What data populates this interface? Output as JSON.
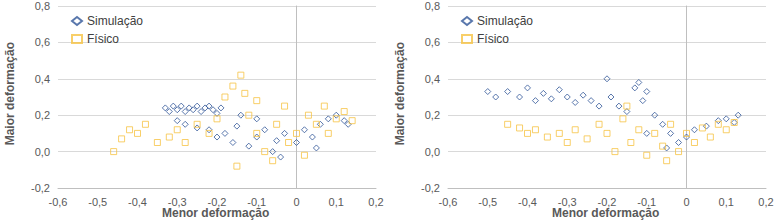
{
  "chart_data": [
    {
      "type": "scatter",
      "x_label": "Menor deformação",
      "y_label": "Maior deformação",
      "xlim": [
        -0.6,
        0.2
      ],
      "xticks": [
        {
          "value": -0.6,
          "label": "-0,6"
        },
        {
          "value": -0.5,
          "label": "-0,5"
        },
        {
          "value": -0.4,
          "label": "-0,4"
        },
        {
          "value": -0.3,
          "label": "-0,3"
        },
        {
          "value": -0.2,
          "label": "-0,2"
        },
        {
          "value": -0.1,
          "label": "-0,1"
        },
        0,
        {
          "value": 0.1,
          "label": "0,1"
        },
        {
          "value": 0.2,
          "label": "0,2"
        }
      ],
      "ylim": [
        -0.2,
        0.8
      ],
      "yticks": [
        {
          "value": -0.2,
          "label": "-0,2"
        },
        {
          "value": 0,
          "label": "0,0"
        },
        {
          "value": 0.2,
          "label": "0,2"
        },
        {
          "value": 0.4,
          "label": "0,4"
        },
        {
          "value": 0.6,
          "label": "0,6"
        },
        {
          "value": 0.8,
          "label": "0,8"
        }
      ],
      "grid": true,
      "legend": "top-left",
      "series": [
        {
          "name": "Simulação",
          "color": "#2f5597",
          "marker": "diamond",
          "x": [
            -0.33,
            -0.32,
            -0.31,
            -0.3,
            -0.29,
            -0.28,
            -0.27,
            -0.26,
            -0.25,
            -0.24,
            -0.23,
            -0.22,
            -0.21,
            -0.2,
            -0.19,
            -0.3,
            -0.28,
            -0.25,
            -0.22,
            -0.2,
            -0.18,
            -0.16,
            -0.15,
            -0.12,
            -0.1,
            -0.08,
            -0.06,
            -0.05,
            -0.03,
            0,
            0.02,
            0.04,
            0.06,
            0.08,
            0.1,
            0.12,
            0.13,
            -0.14,
            -0.1,
            -0.04,
            0.05
          ],
          "values": [
            0.24,
            0.22,
            0.25,
            0.23,
            0.25,
            0.22,
            0.24,
            0.23,
            0.25,
            0.22,
            0.24,
            0.25,
            0.23,
            0.21,
            0.24,
            0.17,
            0.15,
            0.13,
            0.12,
            0.08,
            0.1,
            0.05,
            0.14,
            0.03,
            0.08,
            0.12,
            0.0,
            0.06,
            0.1,
            0.05,
            0.12,
            0.08,
            0.15,
            0.18,
            0.2,
            0.17,
            0.15,
            0.2,
            0.18,
            -0.03,
            0.02
          ]
        },
        {
          "name": "Físico",
          "color": "#f6c343",
          "marker": "square",
          "x": [
            -0.46,
            -0.44,
            -0.42,
            -0.4,
            -0.38,
            -0.35,
            -0.32,
            -0.3,
            -0.28,
            -0.25,
            -0.22,
            -0.2,
            -0.18,
            -0.16,
            -0.14,
            -0.13,
            -0.12,
            -0.1,
            -0.08,
            -0.06,
            -0.05,
            -0.03,
            -0.02,
            0,
            0.02,
            0.03,
            0.05,
            0.07,
            0.08,
            0.1,
            0.12,
            0.14,
            -0.15,
            -0.1
          ],
          "values": [
            0.0,
            0.07,
            0.12,
            0.1,
            0.15,
            0.05,
            0.08,
            0.12,
            0.05,
            0.15,
            0.1,
            0.18,
            0.3,
            0.36,
            0.42,
            0.32,
            0.2,
            0.1,
            0.0,
            -0.05,
            0.15,
            0.25,
            0.05,
            0.1,
            -0.02,
            0.2,
            0.15,
            0.25,
            0.1,
            0.18,
            0.22,
            0.17,
            -0.08,
            0.28
          ]
        }
      ]
    },
    {
      "type": "scatter",
      "x_label": "Menor deformação",
      "y_label": "Maior deformação",
      "xlim": [
        -0.6,
        0.2
      ],
      "xticks": [
        {
          "value": -0.6,
          "label": "-0,6"
        },
        {
          "value": -0.5,
          "label": "-0,5"
        },
        {
          "value": -0.4,
          "label": "-0,4"
        },
        {
          "value": -0.3,
          "label": "-0,3"
        },
        {
          "value": -0.2,
          "label": "-0,2"
        },
        {
          "value": -0.1,
          "label": "-0,1"
        },
        0,
        {
          "value": 0.1,
          "label": "0,1"
        },
        {
          "value": 0.2,
          "label": "0,2"
        }
      ],
      "ylim": [
        -0.2,
        0.8
      ],
      "yticks": [
        {
          "value": -0.2,
          "label": "-0,2"
        },
        {
          "value": 0,
          "label": "0,0"
        },
        {
          "value": 0.2,
          "label": "0,2"
        },
        {
          "value": 0.4,
          "label": "0,4"
        },
        {
          "value": 0.6,
          "label": "0,6"
        },
        {
          "value": 0.8,
          "label": "0,8"
        }
      ],
      "grid": true,
      "legend": "top-left",
      "series": [
        {
          "name": "Simulação",
          "color": "#2f5597",
          "marker": "diamond",
          "x": [
            -0.5,
            -0.48,
            -0.45,
            -0.42,
            -0.4,
            -0.38,
            -0.36,
            -0.34,
            -0.32,
            -0.3,
            -0.28,
            -0.26,
            -0.24,
            -0.22,
            -0.2,
            -0.19,
            -0.17,
            -0.15,
            -0.13,
            -0.12,
            -0.11,
            -0.1,
            -0.08,
            -0.06,
            -0.04,
            -0.02,
            0,
            0.02,
            0.05,
            0.08,
            0.1,
            0.12,
            0.13,
            -0.1,
            -0.05
          ],
          "values": [
            0.33,
            0.3,
            0.33,
            0.3,
            0.35,
            0.28,
            0.32,
            0.29,
            0.34,
            0.3,
            0.27,
            0.31,
            0.28,
            0.25,
            0.4,
            0.3,
            0.25,
            0.22,
            0.35,
            0.38,
            0.28,
            0.33,
            0.2,
            0.15,
            0.1,
            0.05,
            0.08,
            0.12,
            0.14,
            0.17,
            0.18,
            0.16,
            0.2,
            0.1,
            0.02
          ]
        },
        {
          "name": "Físico",
          "color": "#f6c343",
          "marker": "square",
          "x": [
            -0.45,
            -0.42,
            -0.4,
            -0.38,
            -0.35,
            -0.32,
            -0.3,
            -0.28,
            -0.25,
            -0.22,
            -0.2,
            -0.18,
            -0.16,
            -0.14,
            -0.12,
            -0.1,
            -0.08,
            -0.06,
            -0.04,
            -0.02,
            0,
            0.02,
            0.04,
            0.06,
            0.08,
            0.1,
            0.12,
            -0.15,
            -0.05
          ],
          "values": [
            0.15,
            0.13,
            0.1,
            0.12,
            0.08,
            0.1,
            0.05,
            0.12,
            0.07,
            0.15,
            0.1,
            0.0,
            0.18,
            0.05,
            0.12,
            -0.02,
            0.1,
            0.03,
            0.15,
            0.0,
            0.1,
            0.05,
            0.13,
            0.08,
            0.15,
            0.12,
            0.16,
            0.25,
            -0.05
          ]
        }
      ]
    }
  ]
}
